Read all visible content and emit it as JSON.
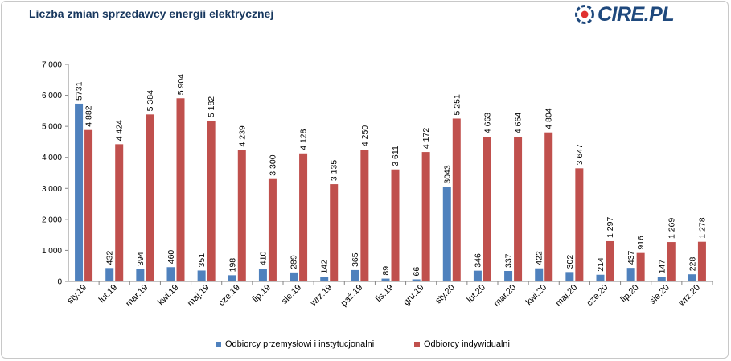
{
  "header": {
    "title": "Liczba zmian sprzedawcy energii elektrycznej",
    "logo_text": "CIRE.PL"
  },
  "colors": {
    "series1": "#4f81bd",
    "series2": "#c0504d",
    "title": "#17375e",
    "logo": "#1f497d",
    "logo_accent": "#e0312f",
    "grid": "#d9d9d9"
  },
  "legend": {
    "series1_label": "Odbiorcy przemysłowi i instytucjonalni",
    "series2_label": "Odbiorcy indywidualni"
  },
  "chart_data": {
    "type": "bar",
    "title": "Liczba zmian sprzedawcy energii elektrycznej",
    "xlabel": "",
    "ylabel": "",
    "ylim": [
      0,
      7000
    ],
    "ytick_values": [
      0,
      1000,
      2000,
      3000,
      4000,
      5000,
      6000,
      7000
    ],
    "ytick_labels": [
      "0",
      "1 000",
      "2 000",
      "3 000",
      "4 000",
      "5 000",
      "6 000",
      "7 000"
    ],
    "grid": false,
    "legend_position": "bottom",
    "categories": [
      "sty.19",
      "lut.19",
      "mar.19",
      "kwi.19",
      "maj.19",
      "cze.19",
      "lip.19",
      "sie.19",
      "wrz.19",
      "paź.19",
      "lis.19",
      "gru.19",
      "sty.20",
      "lut.20",
      "mar.20",
      "kwi.20",
      "maj.20",
      "cze.20",
      "lip.20",
      "sie.20",
      "wrz.20"
    ],
    "series": [
      {
        "name": "Odbiorcy przemysłowi i instytucjonalni",
        "values": [
          5731,
          432,
          394,
          460,
          351,
          198,
          410,
          289,
          142,
          365,
          89,
          66,
          3043,
          346,
          337,
          422,
          302,
          214,
          437,
          147,
          228
        ],
        "labels": [
          "5731",
          "432",
          "394",
          "460",
          "351",
          "198",
          "410",
          "289",
          "142",
          "365",
          "89",
          "66",
          "3043",
          "346",
          "337",
          "422",
          "302",
          "214",
          "437",
          "147",
          "228"
        ]
      },
      {
        "name": "Odbiorcy indywidualni",
        "values": [
          4882,
          4424,
          5384,
          5904,
          5182,
          4239,
          3300,
          4128,
          3135,
          4250,
          3611,
          4172,
          5251,
          4663,
          4664,
          4804,
          3647,
          1297,
          916,
          1269,
          1278
        ],
        "labels": [
          "4 882",
          "4 424",
          "5 384",
          "5 904",
          "5 182",
          "4 239",
          "3 300",
          "4 128",
          "3 135",
          "4 250",
          "3 611",
          "4 172",
          "5 251",
          "4 663",
          "4 664",
          "4 804",
          "3 647",
          "1 297",
          "916",
          "1 269",
          "1 278"
        ]
      }
    ]
  }
}
